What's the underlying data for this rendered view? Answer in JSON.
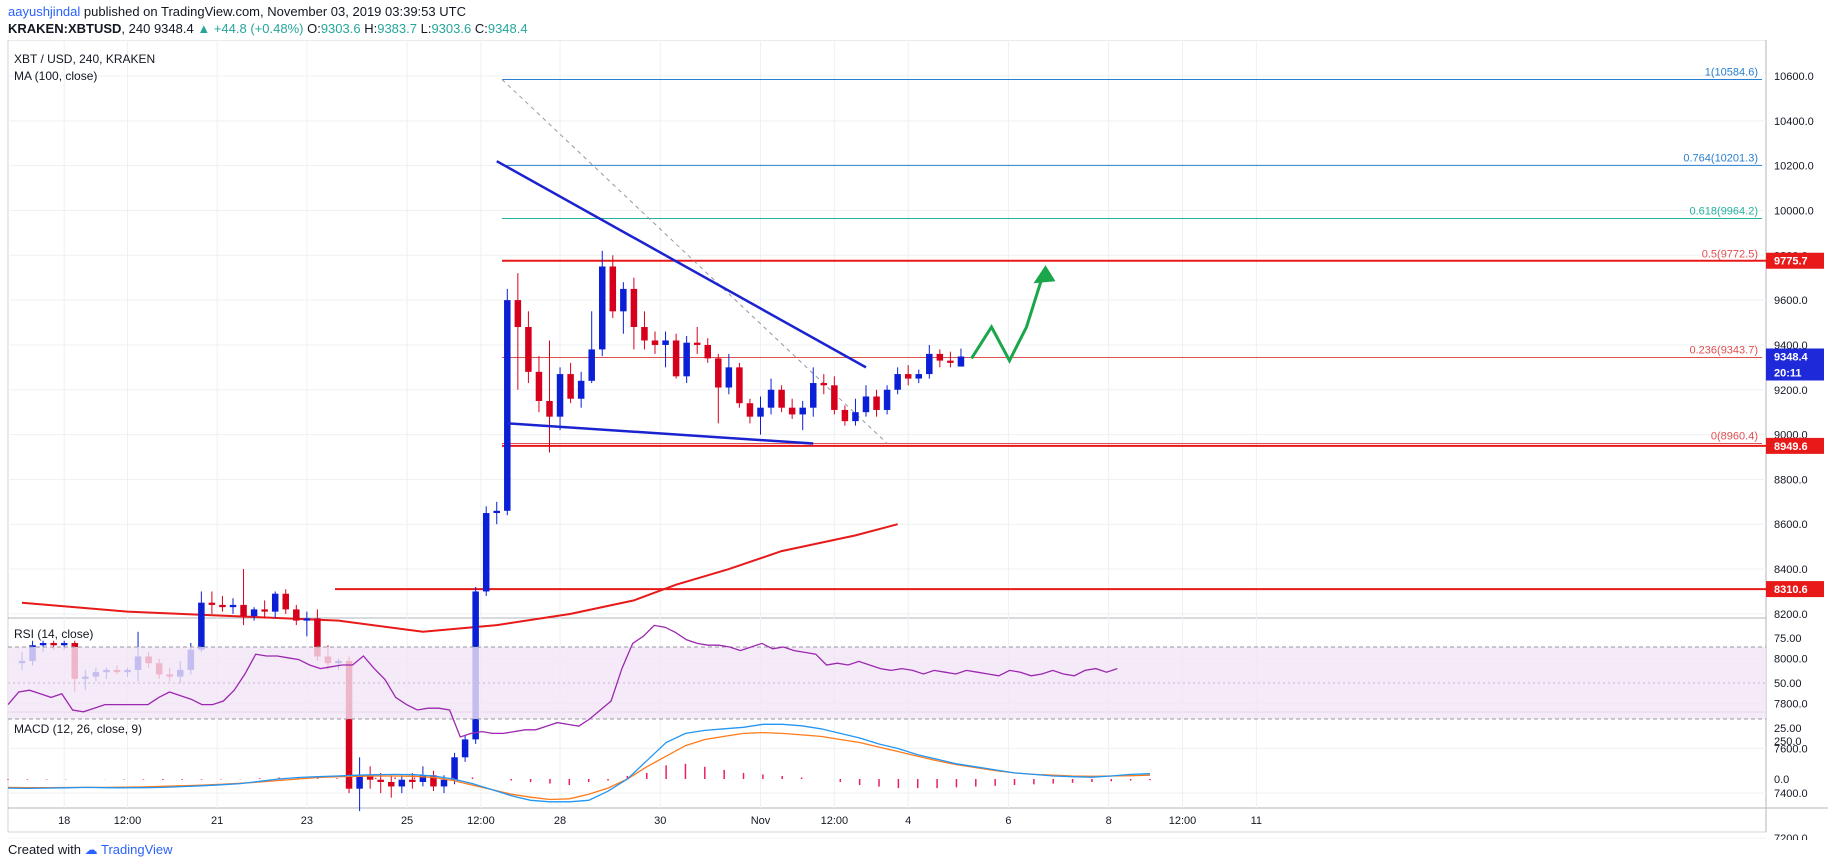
{
  "header": {
    "author": "aayushjindal",
    "published_text": "published on TradingView.com, November 03, 2019 03:39:53 UTC",
    "symbol": "KRAKEN:XBTUSD",
    "interval": "240",
    "last": "9348.4",
    "change": "+44.8 (+0.48%)",
    "open_label": "O:",
    "open": "9303.6",
    "high_label": "H:",
    "high": "9383.7",
    "low_label": "L:",
    "low": "9303.6",
    "close_label": "C:",
    "close": "9348.4"
  },
  "footer": {
    "created_with": "Created with",
    "brand": "TradingView"
  },
  "colors": {
    "up": "#0b1fd6",
    "down": "#d6001c",
    "ma": "#e81919",
    "trend": "#1b23d0",
    "fib": "#2a7fd0",
    "fib_green": "#25b0a0",
    "rsi": "#9c27b0",
    "macd": "#2196f3",
    "signal": "#ff7a1a",
    "hist": "#e91e63",
    "arrow": "#1aa64a"
  },
  "chart_data": [
    {
      "type": "candlestick",
      "title": "XBT / USD, 240, KRAKEN",
      "indicator_label": "MA (100, close)",
      "ylim": [
        7100,
        10700
      ],
      "y_ticks": [
        "10600.0",
        "10400.0",
        "10200.0",
        "10000.0",
        "9800.0",
        "9600.0",
        "9400.0",
        "9200.0",
        "9000.0",
        "8800.0",
        "8600.0",
        "8400.0",
        "8200.0",
        "8000.0",
        "7800.0",
        "7600.0",
        "7400.0",
        "7200.0"
      ],
      "x_ticks": [
        {
          "label": "18",
          "i": 4
        },
        {
          "label": "12:00",
          "i": 10
        },
        {
          "label": "21",
          "i": 18.5
        },
        {
          "label": "23",
          "i": 27
        },
        {
          "label": "25",
          "i": 36.5
        },
        {
          "label": "12:00",
          "i": 43.5
        },
        {
          "label": "28",
          "i": 51
        },
        {
          "label": "30",
          "i": 60.5
        },
        {
          "label": "Nov",
          "i": 70
        },
        {
          "label": "12:00",
          "i": 77
        },
        {
          "label": "4",
          "i": 84
        },
        {
          "label": "6",
          "i": 93.5
        },
        {
          "label": "8",
          "i": 103
        },
        {
          "label": "12:00",
          "i": 110
        },
        {
          "label": "11",
          "i": 117
        }
      ],
      "candles": [
        [
          7980,
          8030,
          7950,
          7990
        ],
        [
          7990,
          8080,
          7970,
          8060
        ],
        [
          8060,
          8080,
          8030,
          8070
        ],
        [
          8070,
          8080,
          8040,
          8060
        ],
        [
          8060,
          8080,
          8040,
          8070
        ],
        [
          8070,
          8080,
          7850,
          7910
        ],
        [
          7910,
          7950,
          7860,
          7920
        ],
        [
          7920,
          7960,
          7900,
          7940
        ],
        [
          7940,
          7960,
          7910,
          7950
        ],
        [
          7950,
          7970,
          7930,
          7940
        ],
        [
          7940,
          7960,
          7920,
          7950
        ],
        [
          7950,
          8120,
          7900,
          8010
        ],
        [
          8010,
          8030,
          7960,
          7980
        ],
        [
          7980,
          8000,
          7910,
          7930
        ],
        [
          7930,
          7960,
          7900,
          7920
        ],
        [
          7920,
          7990,
          7890,
          7950
        ],
        [
          7950,
          8070,
          7930,
          8040
        ],
        [
          8040,
          8300,
          8030,
          8250
        ],
        [
          8250,
          8300,
          8200,
          8240
        ],
        [
          8240,
          8280,
          8210,
          8230
        ],
        [
          8230,
          8270,
          8200,
          8240
        ],
        [
          8240,
          8400,
          8150,
          8190
        ],
        [
          8190,
          8230,
          8170,
          8220
        ],
        [
          8220,
          8260,
          8180,
          8210
        ],
        [
          8210,
          8300,
          8180,
          8290
        ],
        [
          8290,
          8310,
          8200,
          8220
        ],
        [
          8220,
          8240,
          8150,
          8170
        ],
        [
          8170,
          8210,
          8100,
          8180
        ],
        [
          8180,
          8220,
          7990,
          8010
        ],
        [
          8010,
          8060,
          7950,
          7980
        ],
        [
          7980,
          8000,
          7950,
          7990
        ],
        [
          7990,
          8010,
          7400,
          7420
        ],
        [
          7420,
          7560,
          7320,
          7480
        ],
        [
          7480,
          7520,
          7420,
          7460
        ],
        [
          7460,
          7490,
          7400,
          7450
        ],
        [
          7450,
          7480,
          7380,
          7430
        ],
        [
          7430,
          7480,
          7400,
          7460
        ],
        [
          7460,
          7490,
          7420,
          7450
        ],
        [
          7450,
          7520,
          7430,
          7480
        ],
        [
          7480,
          7500,
          7410,
          7430
        ],
        [
          7430,
          7480,
          7400,
          7460
        ],
        [
          7460,
          7580,
          7440,
          7560
        ],
        [
          7560,
          7660,
          7540,
          7640
        ],
        [
          7640,
          8320,
          7620,
          8300
        ],
        [
          8300,
          8680,
          8280,
          8650
        ],
        [
          8650,
          8700,
          8600,
          8660
        ],
        [
          8660,
          9650,
          8640,
          9600
        ],
        [
          9600,
          9720,
          9200,
          9480
        ],
        [
          9480,
          9550,
          9230,
          9280
        ],
        [
          9280,
          9350,
          9100,
          9150
        ],
        [
          9150,
          9420,
          8920,
          9080
        ],
        [
          9080,
          9300,
          9020,
          9270
        ],
        [
          9270,
          9320,
          9140,
          9160
        ],
        [
          9160,
          9280,
          9120,
          9240
        ],
        [
          9240,
          9550,
          9230,
          9380
        ],
        [
          9380,
          9820,
          9350,
          9750
        ],
        [
          9750,
          9800,
          9520,
          9550
        ],
        [
          9550,
          9680,
          9450,
          9650
        ],
        [
          9650,
          9700,
          9380,
          9480
        ],
        [
          9480,
          9550,
          9380,
          9420
        ],
        [
          9420,
          9460,
          9360,
          9400
        ],
        [
          9400,
          9460,
          9300,
          9420
        ],
        [
          9420,
          9450,
          9250,
          9260
        ],
        [
          9260,
          9440,
          9230,
          9410
        ],
        [
          9410,
          9480,
          9360,
          9400
        ],
        [
          9400,
          9430,
          9320,
          9340
        ],
        [
          9340,
          9360,
          9050,
          9210
        ],
        [
          9210,
          9360,
          9180,
          9300
        ],
        [
          9300,
          9320,
          9120,
          9140
        ],
        [
          9140,
          9160,
          9050,
          9080
        ],
        [
          9080,
          9170,
          9000,
          9120
        ],
        [
          9120,
          9250,
          9090,
          9200
        ],
        [
          9200,
          9220,
          9100,
          9120
        ],
        [
          9120,
          9160,
          9070,
          9090
        ],
        [
          9090,
          9150,
          9020,
          9120
        ],
        [
          9120,
          9300,
          9080,
          9230
        ],
        [
          9230,
          9270,
          9180,
          9220
        ],
        [
          9220,
          9260,
          9090,
          9110
        ],
        [
          9110,
          9130,
          9040,
          9060
        ],
        [
          9060,
          9160,
          9040,
          9100
        ],
        [
          9100,
          9220,
          9080,
          9170
        ],
        [
          9170,
          9200,
          9080,
          9110
        ],
        [
          9110,
          9220,
          9090,
          9200
        ],
        [
          9200,
          9300,
          9180,
          9270
        ],
        [
          9270,
          9310,
          9220,
          9250
        ],
        [
          9250,
          9290,
          9230,
          9270
        ],
        [
          9270,
          9400,
          9250,
          9360
        ],
        [
          9360,
          9380,
          9300,
          9330
        ],
        [
          9330,
          9370,
          9300,
          9320
        ],
        [
          9303.6,
          9383.7,
          9303.6,
          9348.4
        ]
      ],
      "ma100": [
        [
          0,
          8250
        ],
        [
          10,
          8210
        ],
        [
          20,
          8190
        ],
        [
          30,
          8170
        ],
        [
          38,
          8120
        ],
        [
          45,
          8150
        ],
        [
          52,
          8200
        ],
        [
          58,
          8260
        ],
        [
          62,
          8330
        ],
        [
          67,
          8400
        ],
        [
          72,
          8480
        ],
        [
          79,
          8550
        ],
        [
          83,
          8600
        ]
      ],
      "resistance_line": {
        "value": 9775.7,
        "label": "9775.7"
      },
      "support_line": {
        "value": 8949.6,
        "label": "8949.6"
      },
      "ma_level_line": {
        "value": 8310.6,
        "label": "8310.6"
      },
      "last_price_label": "9348.4",
      "countdown_label": "20:11",
      "fib_levels": [
        {
          "ratio": "1",
          "value": 10584.6,
          "label": "1(10584.6)"
        },
        {
          "ratio": "0.764",
          "value": 10201.3,
          "label": "0.764(10201.3)"
        },
        {
          "ratio": "0.618",
          "value": 9964.2,
          "label": "0.618(9964.2)"
        },
        {
          "ratio": "0.5",
          "value": 9772.5,
          "label": "0.5(9772.5)"
        },
        {
          "ratio": "0.236",
          "value": 9343.7,
          "label": "0.236(9343.7)"
        },
        {
          "ratio": "0",
          "value": 8960.4,
          "label": "0(8960.4)"
        }
      ],
      "trendlines": [
        {
          "name": "upper",
          "from": [
            45,
            10220
          ],
          "to": [
            80,
            9300
          ]
        },
        {
          "name": "lower",
          "from": [
            46,
            9050
          ],
          "to": [
            75,
            8960
          ]
        }
      ]
    },
    {
      "type": "line",
      "title": "RSI (14, close)",
      "ylim": [
        15,
        90
      ],
      "y_ticks": [
        "75.00",
        "50.00",
        "25.00"
      ],
      "bands": [
        30,
        70
      ],
      "values": [
        38,
        45,
        46,
        44,
        42,
        44,
        35,
        34,
        36,
        38,
        38,
        38,
        38,
        38,
        42,
        45,
        43,
        41,
        38,
        38,
        40,
        46,
        55,
        66,
        65,
        65,
        64,
        63,
        60,
        58,
        59,
        60,
        60,
        65,
        58,
        52,
        42,
        38,
        35,
        36,
        36,
        35,
        20,
        22,
        23,
        22,
        22,
        23,
        24,
        24,
        26,
        28,
        27,
        26,
        30,
        35,
        40,
        58,
        72,
        76,
        82,
        81,
        78,
        74,
        72,
        71,
        71,
        70,
        68,
        70,
        72,
        69,
        70,
        68,
        67,
        66,
        60,
        61,
        60,
        62,
        60,
        58,
        57,
        58,
        57,
        55,
        57,
        56,
        55,
        57,
        56,
        55,
        54,
        57,
        56,
        54,
        55,
        57,
        55,
        54,
        57,
        58,
        56,
        58
      ]
    },
    {
      "type": "line",
      "title": "MACD (12, 26, close, 9)",
      "ylim": [
        -150,
        400
      ],
      "y_ticks": [
        "250.0",
        "0.0"
      ],
      "macd": [
        -60,
        -62,
        -60,
        -58,
        -55,
        -57,
        -58,
        -57,
        -55,
        -50,
        -45,
        -38,
        -30,
        -15,
        0,
        10,
        15,
        20,
        25,
        28,
        30,
        28,
        20,
        0,
        -30,
        -70,
        -110,
        -140,
        -150,
        -150,
        -140,
        -80,
        0,
        120,
        240,
        300,
        320,
        330,
        340,
        360,
        360,
        350,
        330,
        300,
        270,
        230,
        200,
        160,
        130,
        100,
        80,
        60,
        40,
        30,
        20,
        15,
        12,
        20,
        30,
        35
      ],
      "signal": [
        -55,
        -57,
        -57,
        -56,
        -55,
        -55,
        -54,
        -52,
        -48,
        -45,
        -40,
        -35,
        -28,
        -20,
        -10,
        0,
        10,
        15,
        18,
        20,
        20,
        18,
        10,
        -10,
        -40,
        -70,
        -100,
        -120,
        -135,
        -130,
        -100,
        -60,
        0,
        80,
        150,
        220,
        260,
        280,
        300,
        305,
        300,
        290,
        280,
        260,
        240,
        210,
        180,
        150,
        120,
        95,
        75,
        55,
        40,
        30,
        25,
        20,
        18,
        20,
        22,
        25
      ],
      "histogram": [
        -5,
        -4,
        -3,
        -2,
        0,
        -1,
        -3,
        -4,
        -6,
        -5,
        -4,
        -3,
        -2,
        5,
        10,
        10,
        5,
        5,
        6,
        8,
        10,
        10,
        10,
        10,
        10,
        0,
        -10,
        -20,
        -30,
        -40,
        -20,
        -10,
        20,
        40,
        90,
        100,
        80,
        60,
        40,
        30,
        20,
        10,
        0,
        -20,
        -40,
        -50,
        -60,
        -60,
        -60,
        -55,
        -50,
        -45,
        -40,
        -35,
        -30,
        -25,
        -20,
        -15,
        -10,
        -8
      ]
    }
  ]
}
